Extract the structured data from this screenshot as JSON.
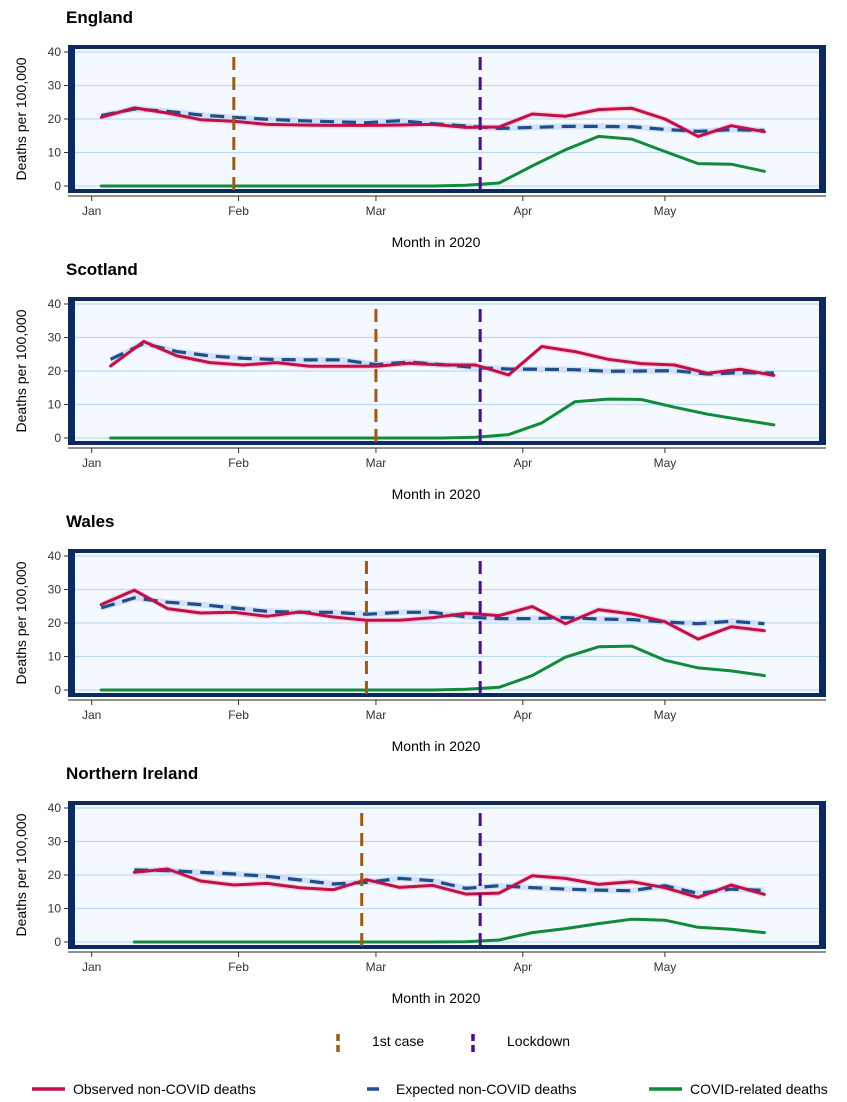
{
  "chart_data": [
    {
      "type": "line",
      "title": "England",
      "xlabel": "Month in 2020",
      "ylabel": "Deaths per 100,000",
      "ylim": [
        0,
        40
      ],
      "yticks": [
        0,
        10,
        20,
        30,
        40
      ],
      "x_ticks": [
        "Jan",
        "Feb",
        "Mar",
        "Apr",
        "May"
      ],
      "grid": true,
      "events": {
        "first_case": "2020-01-31",
        "lockdown": "2020-03-23"
      },
      "series": [
        {
          "key": "observed",
          "dates": [
            "2020-01-03",
            "2020-01-10",
            "2020-01-17",
            "2020-01-24",
            "2020-01-31",
            "2020-02-07",
            "2020-02-14",
            "2020-02-21",
            "2020-02-28",
            "2020-03-06",
            "2020-03-13",
            "2020-03-20",
            "2020-03-27",
            "2020-04-03",
            "2020-04-10",
            "2020-04-17",
            "2020-04-24",
            "2020-05-01",
            "2020-05-08",
            "2020-05-15",
            "2020-05-22"
          ],
          "values": [
            20.5,
            23.3,
            21.8,
            19.8,
            19.3,
            18.4,
            18.2,
            18.1,
            18.1,
            18.2,
            18.4,
            17.5,
            17.6,
            21.5,
            20.8,
            22.8,
            23.2,
            20.0,
            14.8,
            18.0,
            16.2
          ]
        },
        {
          "key": "expected",
          "dates": [
            "2020-01-03",
            "2020-01-10",
            "2020-01-17",
            "2020-01-24",
            "2020-01-31",
            "2020-02-07",
            "2020-02-14",
            "2020-02-21",
            "2020-02-28",
            "2020-03-06",
            "2020-03-13",
            "2020-03-20",
            "2020-03-27",
            "2020-04-03",
            "2020-04-10",
            "2020-04-17",
            "2020-04-24",
            "2020-05-01",
            "2020-05-08",
            "2020-05-15",
            "2020-05-22"
          ],
          "values": [
            21.0,
            23.0,
            22.3,
            21.2,
            20.5,
            19.9,
            19.5,
            19.2,
            18.9,
            19.5,
            18.6,
            17.9,
            17.2,
            17.5,
            17.8,
            17.8,
            17.7,
            16.9,
            16.3,
            16.8,
            16.6
          ]
        },
        {
          "key": "covid",
          "dates": [
            "2020-01-03",
            "2020-01-10",
            "2020-01-17",
            "2020-01-24",
            "2020-01-31",
            "2020-02-07",
            "2020-02-14",
            "2020-02-21",
            "2020-02-28",
            "2020-03-06",
            "2020-03-13",
            "2020-03-20",
            "2020-03-27",
            "2020-04-03",
            "2020-04-10",
            "2020-04-17",
            "2020-04-24",
            "2020-05-01",
            "2020-05-08",
            "2020-05-15",
            "2020-05-22"
          ],
          "values": [
            0,
            0,
            0,
            0,
            0,
            0,
            0,
            0,
            0,
            0,
            0,
            0.2,
            0.9,
            6.0,
            10.8,
            14.8,
            14.0,
            10.3,
            6.7,
            6.5,
            4.4
          ]
        }
      ]
    },
    {
      "type": "line",
      "title": "Scotland",
      "xlabel": "Month in 2020",
      "ylabel": "Deaths per 100,000",
      "ylim": [
        0,
        40
      ],
      "yticks": [
        0,
        10,
        20,
        30,
        40
      ],
      "x_ticks": [
        "Jan",
        "Feb",
        "Mar",
        "Apr",
        "May"
      ],
      "grid": true,
      "events": {
        "first_case": "2020-03-01",
        "lockdown": "2020-03-23"
      },
      "series": [
        {
          "key": "observed",
          "dates": [
            "2020-01-05",
            "2020-01-12",
            "2020-01-19",
            "2020-01-26",
            "2020-02-02",
            "2020-02-09",
            "2020-02-16",
            "2020-02-23",
            "2020-03-01",
            "2020-03-08",
            "2020-03-15",
            "2020-03-22",
            "2020-03-29",
            "2020-04-05",
            "2020-04-12",
            "2020-04-19",
            "2020-04-26",
            "2020-05-03",
            "2020-05-10",
            "2020-05-17",
            "2020-05-24"
          ],
          "values": [
            21.5,
            28.8,
            24.5,
            22.5,
            21.8,
            22.5,
            21.4,
            21.4,
            21.4,
            22.3,
            21.8,
            21.8,
            18.8,
            27.3,
            25.8,
            23.5,
            22.2,
            21.8,
            19.3,
            20.5,
            18.7
          ]
        },
        {
          "key": "expected",
          "dates": [
            "2020-01-05",
            "2020-01-12",
            "2020-01-19",
            "2020-01-26",
            "2020-02-02",
            "2020-02-09",
            "2020-02-16",
            "2020-02-23",
            "2020-03-01",
            "2020-03-08",
            "2020-03-15",
            "2020-03-22",
            "2020-03-29",
            "2020-04-05",
            "2020-04-12",
            "2020-04-19",
            "2020-04-26",
            "2020-05-03",
            "2020-05-10",
            "2020-05-17",
            "2020-05-24"
          ],
          "values": [
            23.5,
            28.2,
            25.8,
            24.5,
            23.8,
            23.4,
            23.3,
            23.3,
            21.9,
            22.7,
            21.9,
            21.0,
            20.6,
            20.5,
            20.4,
            19.9,
            20.0,
            20.1,
            19.1,
            19.5,
            19.4
          ]
        },
        {
          "key": "covid",
          "dates": [
            "2020-01-05",
            "2020-01-12",
            "2020-01-19",
            "2020-01-26",
            "2020-02-02",
            "2020-02-09",
            "2020-02-16",
            "2020-02-23",
            "2020-03-01",
            "2020-03-08",
            "2020-03-15",
            "2020-03-22",
            "2020-03-29",
            "2020-04-05",
            "2020-04-12",
            "2020-04-19",
            "2020-04-26",
            "2020-05-03",
            "2020-05-10",
            "2020-05-17",
            "2020-05-24"
          ],
          "values": [
            0,
            0,
            0,
            0,
            0,
            0,
            0,
            0,
            0,
            0,
            0,
            0.2,
            1.0,
            4.5,
            10.8,
            11.6,
            11.5,
            9.2,
            7.1,
            5.5,
            3.9
          ]
        }
      ]
    },
    {
      "type": "line",
      "title": "Wales",
      "xlabel": "Month in 2020",
      "ylabel": "Deaths per 100,000",
      "ylim": [
        0,
        40
      ],
      "yticks": [
        0,
        10,
        20,
        30,
        40
      ],
      "x_ticks": [
        "Jan",
        "Feb",
        "Mar",
        "Apr",
        "May"
      ],
      "grid": true,
      "events": {
        "first_case": "2020-02-28",
        "lockdown": "2020-03-23"
      },
      "series": [
        {
          "key": "observed",
          "dates": [
            "2020-01-03",
            "2020-01-10",
            "2020-01-17",
            "2020-01-24",
            "2020-01-31",
            "2020-02-07",
            "2020-02-14",
            "2020-02-21",
            "2020-02-28",
            "2020-03-06",
            "2020-03-13",
            "2020-03-20",
            "2020-03-27",
            "2020-04-03",
            "2020-04-10",
            "2020-04-17",
            "2020-04-24",
            "2020-05-01",
            "2020-05-08",
            "2020-05-15",
            "2020-05-22"
          ],
          "values": [
            25.5,
            29.8,
            24.3,
            23.0,
            23.2,
            22.0,
            23.3,
            21.8,
            20.8,
            20.8,
            21.6,
            22.9,
            22.2,
            24.9,
            19.8,
            24.0,
            22.7,
            20.4,
            15.2,
            18.9,
            17.7
          ]
        },
        {
          "key": "expected",
          "dates": [
            "2020-01-03",
            "2020-01-10",
            "2020-01-17",
            "2020-01-24",
            "2020-01-31",
            "2020-02-07",
            "2020-02-14",
            "2020-02-21",
            "2020-02-28",
            "2020-03-06",
            "2020-03-13",
            "2020-03-20",
            "2020-03-27",
            "2020-04-03",
            "2020-04-10",
            "2020-04-17",
            "2020-04-24",
            "2020-05-01",
            "2020-05-08",
            "2020-05-15",
            "2020-05-22"
          ],
          "values": [
            24.5,
            27.5,
            26.2,
            25.5,
            24.5,
            23.5,
            23.2,
            23.2,
            22.6,
            23.2,
            23.2,
            21.8,
            21.3,
            21.3,
            21.6,
            21.2,
            21.0,
            20.3,
            19.8,
            20.5,
            19.8
          ]
        },
        {
          "key": "covid",
          "dates": [
            "2020-01-03",
            "2020-01-10",
            "2020-01-17",
            "2020-01-24",
            "2020-01-31",
            "2020-02-07",
            "2020-02-14",
            "2020-02-21",
            "2020-02-28",
            "2020-03-06",
            "2020-03-13",
            "2020-03-20",
            "2020-03-27",
            "2020-04-03",
            "2020-04-10",
            "2020-04-17",
            "2020-04-24",
            "2020-05-01",
            "2020-05-08",
            "2020-05-15",
            "2020-05-22"
          ],
          "values": [
            0,
            0,
            0,
            0,
            0,
            0,
            0,
            0,
            0,
            0,
            0,
            0.2,
            0.8,
            4.3,
            9.8,
            12.9,
            13.1,
            8.9,
            6.6,
            5.7,
            4.3
          ]
        }
      ]
    },
    {
      "type": "line",
      "title": "Northern Ireland",
      "xlabel": "Month in 2020",
      "ylabel": "Deaths per 100,000",
      "ylim": [
        0,
        40
      ],
      "yticks": [
        0,
        10,
        20,
        30,
        40
      ],
      "x_ticks": [
        "Jan",
        "Feb",
        "Mar",
        "Apr",
        "May"
      ],
      "grid": true,
      "events": {
        "first_case": "2020-02-27",
        "lockdown": "2020-03-23"
      },
      "series": [
        {
          "key": "observed",
          "dates": [
            "2020-01-10",
            "2020-01-17",
            "2020-01-24",
            "2020-01-31",
            "2020-02-07",
            "2020-02-14",
            "2020-02-21",
            "2020-02-28",
            "2020-03-06",
            "2020-03-13",
            "2020-03-20",
            "2020-03-27",
            "2020-04-03",
            "2020-04-10",
            "2020-04-17",
            "2020-04-24",
            "2020-05-01",
            "2020-05-08",
            "2020-05-15",
            "2020-05-22"
          ],
          "values": [
            20.8,
            21.8,
            18.2,
            17.0,
            17.5,
            16.2,
            15.6,
            18.6,
            16.3,
            16.9,
            14.3,
            14.6,
            19.8,
            19.0,
            17.2,
            18.0,
            16.2,
            13.3,
            17.0,
            14.2
          ]
        },
        {
          "key": "expected",
          "dates": [
            "2020-01-10",
            "2020-01-17",
            "2020-01-24",
            "2020-01-31",
            "2020-02-07",
            "2020-02-14",
            "2020-02-21",
            "2020-02-28",
            "2020-03-06",
            "2020-03-13",
            "2020-03-20",
            "2020-03-27",
            "2020-04-03",
            "2020-04-10",
            "2020-04-17",
            "2020-04-24",
            "2020-05-01",
            "2020-05-08",
            "2020-05-15",
            "2020-05-22"
          ],
          "values": [
            21.5,
            21.3,
            20.8,
            20.3,
            19.6,
            18.5,
            17.3,
            17.8,
            19.0,
            18.3,
            16.0,
            16.8,
            16.2,
            15.8,
            15.5,
            15.3,
            16.8,
            14.5,
            15.8,
            15.4
          ]
        },
        {
          "key": "covid",
          "dates": [
            "2020-01-10",
            "2020-01-17",
            "2020-01-24",
            "2020-01-31",
            "2020-02-07",
            "2020-02-14",
            "2020-02-21",
            "2020-02-28",
            "2020-03-06",
            "2020-03-13",
            "2020-03-20",
            "2020-03-27",
            "2020-04-03",
            "2020-04-10",
            "2020-04-17",
            "2020-04-24",
            "2020-05-01",
            "2020-05-08",
            "2020-05-15",
            "2020-05-22"
          ],
          "values": [
            0,
            0,
            0,
            0,
            0,
            0,
            0,
            0,
            0,
            0,
            0.1,
            0.6,
            2.8,
            4.0,
            5.5,
            6.8,
            6.5,
            4.4,
            3.8,
            2.8
          ]
        }
      ]
    }
  ],
  "legend": {
    "events": [
      {
        "key": "first_case",
        "label": "1st case",
        "color": "#9c5a13"
      },
      {
        "key": "lockdown",
        "label": "Lockdown",
        "color": "#4b0e8c"
      }
    ],
    "series": [
      {
        "key": "observed",
        "label": "Observed non-COVID deaths",
        "color": "#c0104a"
      },
      {
        "key": "expected",
        "label": "Expected non-COVID deaths",
        "color": "#1f4e8c"
      },
      {
        "key": "covid",
        "label": "COVID-related deaths",
        "color": "#118a3a"
      }
    ]
  },
  "colors": {
    "plot_background": "#f4f8ff",
    "panel_frame": "#0d2a5e",
    "gridline": "#bcdcf4",
    "observed_band": "#f7c8d6",
    "expected_band": "#c5d8f2"
  }
}
